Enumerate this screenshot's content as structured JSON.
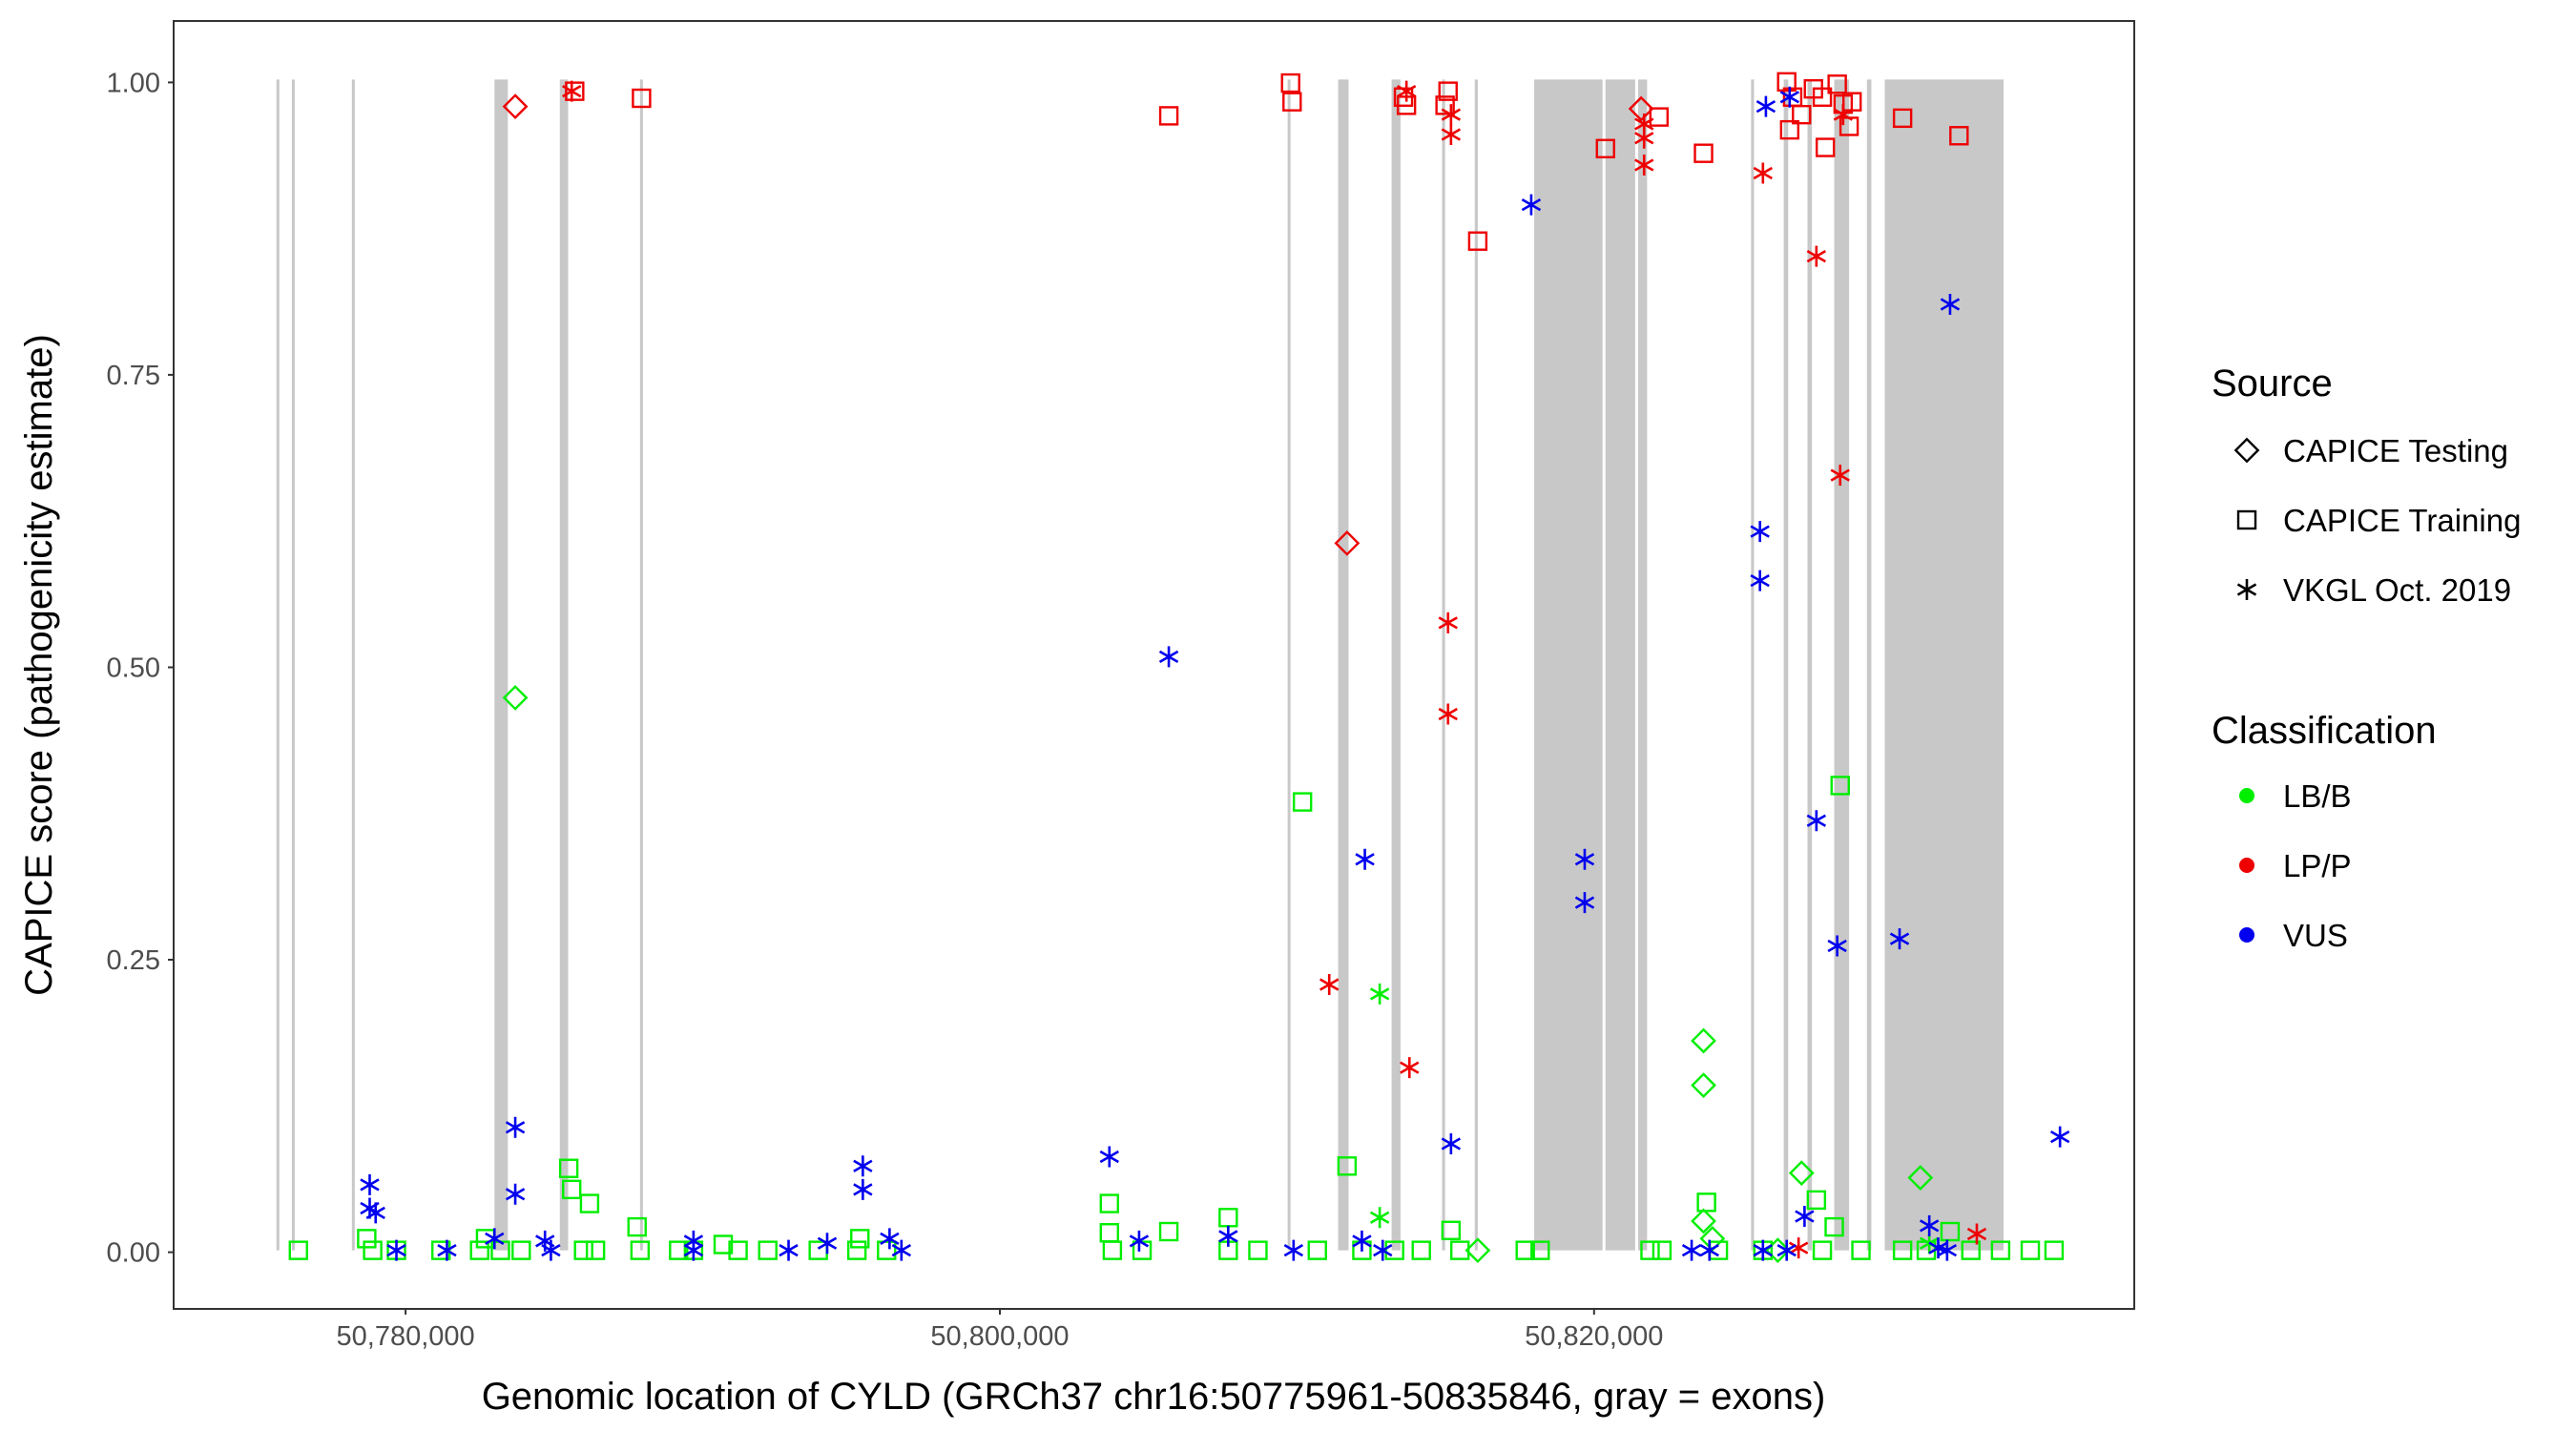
{
  "chart_data": {
    "type": "scatter",
    "title": "",
    "xlabel": "Genomic location of CYLD (GRCh37 chr16:50775961-50835846, gray = exons)",
    "ylabel": "CAPICE score (pathogenicity estimate)",
    "xlim": [
      50772500,
      50838500
    ],
    "ylim": [
      -0.05,
      1.05
    ],
    "x_ticks": [
      50780000,
      50800000,
      50820000
    ],
    "x_tick_labels": [
      "50,780,000",
      "50,800,000",
      "50,820,000"
    ],
    "y_ticks": [
      0,
      0.25,
      0.5,
      0.75,
      1
    ],
    "y_tick_labels": [
      "0.00",
      "0.25",
      "0.50",
      "0.75",
      "1.00"
    ],
    "grid": false,
    "exons": [
      [
        50775961,
        50776050
      ],
      [
        50776480,
        50776530
      ],
      [
        50778500,
        50778560
      ],
      [
        50783300,
        50783750
      ],
      [
        50785500,
        50785780
      ],
      [
        50788200,
        50788280
      ],
      [
        50810000,
        50810050
      ],
      [
        50811700,
        50812050
      ],
      [
        50813500,
        50813800
      ],
      [
        50815200,
        50815300
      ],
      [
        50816300,
        50816400
      ],
      [
        50818300,
        50820600
      ],
      [
        50820700,
        50821700
      ],
      [
        50821800,
        50822100
      ],
      [
        50825600,
        50825700
      ],
      [
        50826700,
        50826850
      ],
      [
        50827500,
        50827650
      ],
      [
        50828400,
        50828900
      ],
      [
        50829500,
        50829650
      ],
      [
        50830100,
        50834100
      ]
    ],
    "legend": {
      "position": "right",
      "source_title": "Source",
      "source_entries": [
        {
          "label": "CAPICE Testing",
          "shape": "diamond"
        },
        {
          "label": "CAPICE Training",
          "shape": "square"
        },
        {
          "label": "VKGL Oct. 2019",
          "shape": "asterisk"
        }
      ],
      "class_title": "Classification",
      "class_entries": [
        {
          "label": "LB/B",
          "color": "#00ee00"
        },
        {
          "label": "LP/P",
          "color": "#ee0000"
        },
        {
          "label": "VUS",
          "color": "#0000ee"
        }
      ]
    },
    "series": [
      {
        "name": "CAPICE Training",
        "shape": "square",
        "points": [
          [
            50786000,
            0.99,
            "LP/P"
          ],
          [
            50788250,
            0.984,
            "LP/P"
          ],
          [
            50806000,
            0.969,
            "LP/P"
          ],
          [
            50810100,
            0.997,
            "LP/P"
          ],
          [
            50810150,
            0.981,
            "LP/P"
          ],
          [
            50813900,
            0.985,
            "LP/P"
          ],
          [
            50814000,
            0.978,
            "LP/P"
          ],
          [
            50815400,
            0.99,
            "LP/P"
          ],
          [
            50815300,
            0.978,
            "LP/P"
          ],
          [
            50816400,
            0.862,
            "LP/P"
          ],
          [
            50820700,
            0.941,
            "LP/P"
          ],
          [
            50822500,
            0.968,
            "LP/P"
          ],
          [
            50824000,
            0.937,
            "LP/P"
          ],
          [
            50826800,
            0.998,
            "LP/P"
          ],
          [
            50827000,
            0.985,
            "LP/P"
          ],
          [
            50827300,
            0.97,
            "LP/P"
          ],
          [
            50826900,
            0.957,
            "LP/P"
          ],
          [
            50827700,
            0.992,
            "LP/P"
          ],
          [
            50828000,
            0.985,
            "LP/P"
          ],
          [
            50828100,
            0.942,
            "LP/P"
          ],
          [
            50828500,
            0.996,
            "LP/P"
          ],
          [
            50828700,
            0.979,
            "LP/P"
          ],
          [
            50828900,
            0.96,
            "LP/P"
          ],
          [
            50829000,
            0.981,
            "LP/P"
          ],
          [
            50830700,
            0.967,
            "LP/P"
          ],
          [
            50832600,
            0.952,
            "LP/P"
          ],
          [
            50785800,
            0.07,
            "LB/B"
          ],
          [
            50785900,
            0.052,
            "LB/B"
          ],
          [
            50786500,
            0.04,
            "LB/B"
          ],
          [
            50788100,
            0.02,
            "LB/B"
          ],
          [
            50776700,
            0,
            "LB/B"
          ],
          [
            50779000,
            0.01,
            "LB/B"
          ],
          [
            50783000,
            0.01,
            "LB/B"
          ],
          [
            50804000,
            0.04,
            "LB/B"
          ],
          [
            50804000,
            0.015,
            "LB/B"
          ],
          [
            50806000,
            0.016,
            "LB/B"
          ],
          [
            50808000,
            0.028,
            "LB/B"
          ],
          [
            50810500,
            0.383,
            "LB/B"
          ],
          [
            50812000,
            0.072,
            "LB/B"
          ],
          [
            50815500,
            0.017,
            "LB/B"
          ],
          [
            50824100,
            0.041,
            "LB/B"
          ],
          [
            50827800,
            0.043,
            "LB/B"
          ],
          [
            50828600,
            0.397,
            "LB/B"
          ],
          [
            50828400,
            0.02,
            "LB/B"
          ],
          [
            50832300,
            0.016,
            "LB/B"
          ],
          [
            50795600,
            0.01,
            "LB/B"
          ],
          [
            50791000,
            0.005,
            "LB/B"
          ],
          [
            50779200,
            0,
            "LB/B"
          ],
          [
            50780000,
            0,
            "LB/B"
          ],
          [
            50781500,
            0,
            "LB/B"
          ],
          [
            50782800,
            0,
            "LB/B"
          ],
          [
            50783500,
            0,
            "LB/B"
          ],
          [
            50784200,
            0,
            "LB/B"
          ],
          [
            50786300,
            0,
            "LB/B"
          ],
          [
            50786700,
            0,
            "LB/B"
          ],
          [
            50788200,
            0,
            "LB/B"
          ],
          [
            50789500,
            0,
            "LB/B"
          ],
          [
            50790000,
            0,
            "LB/B"
          ],
          [
            50791500,
            0,
            "LB/B"
          ],
          [
            50792500,
            0,
            "LB/B"
          ],
          [
            50794200,
            0,
            "LB/B"
          ],
          [
            50795500,
            0,
            "LB/B"
          ],
          [
            50796500,
            0,
            "LB/B"
          ],
          [
            50804100,
            0,
            "LB/B"
          ],
          [
            50805100,
            0,
            "LB/B"
          ],
          [
            50808000,
            0,
            "LB/B"
          ],
          [
            50809000,
            0,
            "LB/B"
          ],
          [
            50811000,
            0,
            "LB/B"
          ],
          [
            50812500,
            0,
            "LB/B"
          ],
          [
            50813600,
            0,
            "LB/B"
          ],
          [
            50814500,
            0,
            "LB/B"
          ],
          [
            50815800,
            0,
            "LB/B"
          ],
          [
            50818000,
            0,
            "LB/B"
          ],
          [
            50818500,
            0,
            "LB/B"
          ],
          [
            50822200,
            0,
            "LB/B"
          ],
          [
            50822600,
            0,
            "LB/B"
          ],
          [
            50824500,
            0,
            "LB/B"
          ],
          [
            50826000,
            0,
            "LB/B"
          ],
          [
            50828000,
            0,
            "LB/B"
          ],
          [
            50829300,
            0,
            "LB/B"
          ],
          [
            50830700,
            0,
            "LB/B"
          ],
          [
            50831500,
            0,
            "LB/B"
          ],
          [
            50833000,
            0,
            "LB/B"
          ],
          [
            50834000,
            0,
            "LB/B"
          ],
          [
            50835000,
            0,
            "LB/B"
          ],
          [
            50835800,
            0,
            "LB/B"
          ]
        ]
      },
      {
        "name": "CAPICE Testing",
        "shape": "diamond",
        "points": [
          [
            50784000,
            0.977,
            "LP/P"
          ],
          [
            50812000,
            0.604,
            "LP/P"
          ],
          [
            50821900,
            0.975,
            "LP/P"
          ],
          [
            50784000,
            0.472,
            "LB/B"
          ],
          [
            50824000,
            0.179,
            "LB/B"
          ],
          [
            50824000,
            0.141,
            "LB/B"
          ],
          [
            50827300,
            0.066,
            "LB/B"
          ],
          [
            50831300,
            0.062,
            "LB/B"
          ],
          [
            50824000,
            0.025,
            "LB/B"
          ],
          [
            50824300,
            0.01,
            "LB/B"
          ],
          [
            50816400,
            0,
            "LB/B"
          ],
          [
            50826500,
            0,
            "LB/B"
          ]
        ]
      },
      {
        "name": "VKGL Oct. 2019",
        "shape": "asterisk",
        "points": [
          [
            50785900,
            0.99,
            "LP/P"
          ],
          [
            50814000,
            0.99,
            "LP/P"
          ],
          [
            50815500,
            0.97,
            "LP/P"
          ],
          [
            50815500,
            0.953,
            "LP/P"
          ],
          [
            50822000,
            0.962,
            "LP/P"
          ],
          [
            50822000,
            0.95,
            "LP/P"
          ],
          [
            50822000,
            0.927,
            "LP/P"
          ],
          [
            50826000,
            0.92,
            "LP/P"
          ],
          [
            50827800,
            0.849,
            "LP/P"
          ],
          [
            50828600,
            0.662,
            "LP/P"
          ],
          [
            50828700,
            0.97,
            "LP/P"
          ],
          [
            50815400,
            0.536,
            "LP/P"
          ],
          [
            50815400,
            0.458,
            "LP/P"
          ],
          [
            50811400,
            0.227,
            "LP/P"
          ],
          [
            50814100,
            0.156,
            "LP/P"
          ],
          [
            50833200,
            0.014,
            "LP/P"
          ],
          [
            50827200,
            0.002,
            "LP/P"
          ],
          [
            50813100,
            0.219,
            "LB/B"
          ],
          [
            50813100,
            0.028,
            "LB/B"
          ],
          [
            50831600,
            0.006,
            "LB/B"
          ],
          [
            50818200,
            0.893,
            "VUS"
          ],
          [
            50826100,
            0.977,
            "VUS"
          ],
          [
            50826900,
            0.985,
            "VUS"
          ],
          [
            50832300,
            0.808,
            "VUS"
          ],
          [
            50825900,
            0.614,
            "VUS"
          ],
          [
            50825900,
            0.572,
            "VUS"
          ],
          [
            50806000,
            0.507,
            "VUS"
          ],
          [
            50827800,
            0.367,
            "VUS"
          ],
          [
            50812600,
            0.334,
            "VUS"
          ],
          [
            50820000,
            0.334,
            "VUS"
          ],
          [
            50820000,
            0.297,
            "VUS"
          ],
          [
            50828500,
            0.26,
            "VUS"
          ],
          [
            50830600,
            0.266,
            "VUS"
          ],
          [
            50784000,
            0.105,
            "VUS"
          ],
          [
            50815500,
            0.091,
            "VUS"
          ],
          [
            50836000,
            0.097,
            "VUS"
          ],
          [
            50804000,
            0.08,
            "VUS"
          ],
          [
            50795700,
            0.072,
            "VUS"
          ],
          [
            50795700,
            0.052,
            "VUS"
          ],
          [
            50779100,
            0.056,
            "VUS"
          ],
          [
            50784000,
            0.048,
            "VUS"
          ],
          [
            50779100,
            0.036,
            "VUS"
          ],
          [
            50779300,
            0.032,
            "VUS"
          ],
          [
            50827400,
            0.029,
            "VUS"
          ],
          [
            50831600,
            0.021,
            "VUS"
          ],
          [
            50783300,
            0.01,
            "VUS"
          ],
          [
            50785000,
            0.008,
            "VUS"
          ],
          [
            50790000,
            0.008,
            "VUS"
          ],
          [
            50794500,
            0.006,
            "VUS"
          ],
          [
            50796600,
            0.01,
            "VUS"
          ],
          [
            50805000,
            0.008,
            "VUS"
          ],
          [
            50808000,
            0.012,
            "VUS"
          ],
          [
            50812500,
            0.008,
            "VUS"
          ],
          [
            50780000,
            0,
            "VUS"
          ],
          [
            50781700,
            0,
            "VUS"
          ],
          [
            50785200,
            0,
            "VUS"
          ],
          [
            50790000,
            0,
            "VUS"
          ],
          [
            50793200,
            0,
            "VUS"
          ],
          [
            50797000,
            0,
            "VUS"
          ],
          [
            50810200,
            0,
            "VUS"
          ],
          [
            50813200,
            0,
            "VUS"
          ],
          [
            50823600,
            0,
            "VUS"
          ],
          [
            50824200,
            0,
            "VUS"
          ],
          [
            50826000,
            0,
            "VUS"
          ],
          [
            50826800,
            0,
            "VUS"
          ],
          [
            50832200,
            0,
            "VUS"
          ],
          [
            50831900,
            0.002,
            "VUS"
          ]
        ]
      }
    ]
  }
}
